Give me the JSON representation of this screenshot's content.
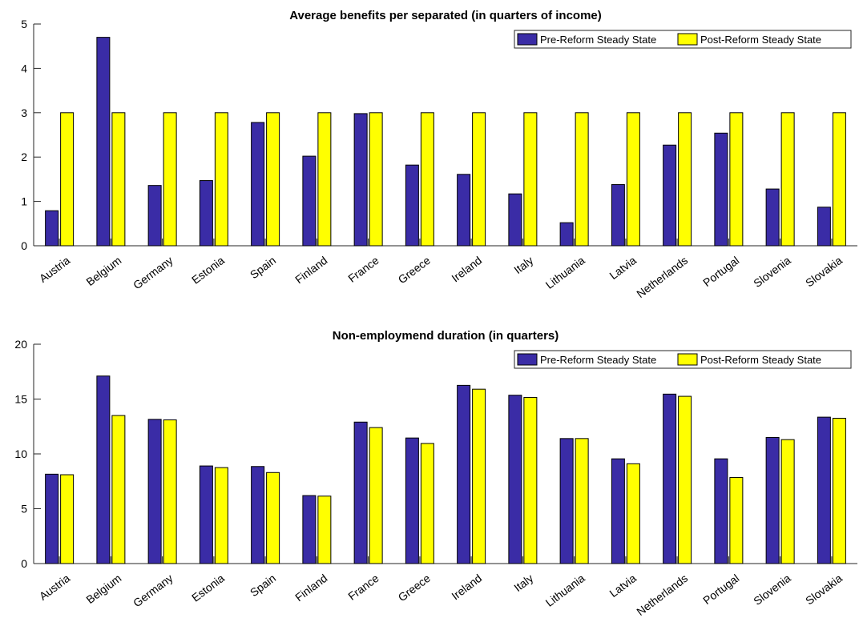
{
  "chart_data": [
    {
      "type": "bar",
      "title": "Average benefits per separated (in quarters of income)",
      "xlabel": "",
      "ylabel": "",
      "ylim": [
        0,
        5
      ],
      "yticks": [
        0,
        1,
        2,
        3,
        4,
        5
      ],
      "grid": false,
      "legend_position": "top-right",
      "categories": [
        "Austria",
        "Belgium",
        "Germany",
        "Estonia",
        "Spain",
        "Finland",
        "France",
        "Greece",
        "Ireland",
        "Italy",
        "Lithuania",
        "Latvia",
        "Netherlands",
        "Portugal",
        "Slovenia",
        "Slovakia"
      ],
      "series": [
        {
          "name": "Pre-Reform Steady State",
          "color": "#3a2ca6",
          "values": [
            0.79,
            4.7,
            1.36,
            1.47,
            2.78,
            2.02,
            2.98,
            1.82,
            1.61,
            1.17,
            0.52,
            1.38,
            2.27,
            2.54,
            1.28,
            0.87
          ]
        },
        {
          "name": "Post-Reform Steady State",
          "color": "#ffff00",
          "values": [
            3.0,
            3.0,
            3.0,
            3.0,
            3.0,
            3.0,
            3.0,
            3.0,
            3.0,
            3.0,
            3.0,
            3.0,
            3.0,
            3.0,
            3.0,
            3.0
          ]
        }
      ]
    },
    {
      "type": "bar",
      "title": "Non-employmend duration (in quarters)",
      "xlabel": "",
      "ylabel": "",
      "ylim": [
        0,
        20
      ],
      "yticks": [
        0,
        5,
        10,
        15,
        20
      ],
      "grid": false,
      "legend_position": "top-right",
      "categories": [
        "Austria",
        "Belgium",
        "Germany",
        "Estonia",
        "Spain",
        "Finland",
        "France",
        "Greece",
        "Ireland",
        "Italy",
        "Lithuania",
        "Latvia",
        "Netherlands",
        "Portugal",
        "Slovenia",
        "Slovakia"
      ],
      "series": [
        {
          "name": "Pre-Reform Steady State",
          "color": "#3a2ca6",
          "values": [
            8.15,
            17.1,
            13.15,
            8.9,
            8.85,
            6.2,
            12.9,
            11.45,
            16.25,
            15.35,
            11.4,
            9.55,
            15.45,
            9.55,
            11.5,
            13.35
          ]
        },
        {
          "name": "Post-Reform Steady State",
          "color": "#ffff00",
          "values": [
            8.1,
            13.5,
            13.1,
            8.75,
            8.3,
            6.15,
            12.4,
            10.95,
            15.9,
            15.15,
            11.4,
            9.1,
            15.25,
            7.85,
            11.3,
            13.25
          ]
        }
      ]
    }
  ]
}
